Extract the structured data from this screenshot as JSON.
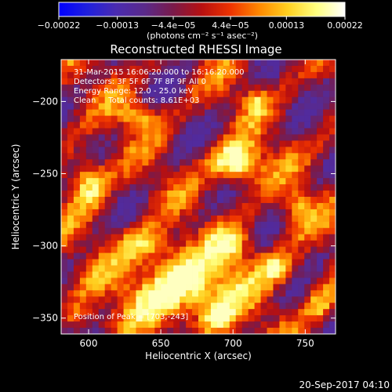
{
  "chart_data": {
    "type": "heatmap",
    "title": "Reconstructed RHESSI Image",
    "xlabel": "Heliocentric X (arcsec)",
    "ylabel": "Heliocentric Y (arcsec)",
    "xlim": [
      581,
      771
    ],
    "ylim": [
      -361,
      -171
    ],
    "x_ticks": [
      600,
      650,
      700,
      750
    ],
    "y_ticks": [
      -200,
      -250,
      -300,
      -350
    ],
    "x_tick_labels": [
      "600",
      "650",
      "700",
      "750"
    ],
    "y_tick_labels": [
      "−200",
      "−250",
      "−300",
      "−350"
    ],
    "colorbar": {
      "ticks": [
        -0.00022,
        -0.00013,
        -4.4e-05,
        4.4e-05,
        0.00013,
        0.00022
      ],
      "tick_labels": [
        "−0.00022",
        "−0.00013",
        "−4.4e−05",
        "4.4e−05",
        "0.00013",
        "0.00022"
      ],
      "unit_label": "(photons cm⁻² s⁻¹ asec⁻²)",
      "colormap": [
        "#0000ff",
        "#2020dd",
        "#4a2bb0",
        "#5a2a8a",
        "#7a1a4a",
        "#b81010",
        "#ee3300",
        "#ff8800",
        "#ffd020",
        "#ffff80",
        "#ffffff"
      ]
    },
    "annotations": [
      "31-Mar-2015 16:06:20.000 to 16:16:20.000",
      "Detectors: 3F 5F 6F 7F 8F 9F All 0",
      "Energy Range: 12.0 - 25.0 keV",
      "Clean     Total counts: 8.61E+03"
    ],
    "peak_label": "Position of Peak = [703,-243]",
    "peak": [
      703,
      -243
    ],
    "sources": [
      {
        "x": 703,
        "y": -243,
        "amp": 1.0,
        "sx": 12,
        "sy": 10
      },
      {
        "x": 665,
        "y": -330,
        "amp": 0.95,
        "sx": 26,
        "sy": 16
      },
      {
        "x": 600,
        "y": -255,
        "amp": 0.75,
        "sx": 9,
        "sy": 12
      },
      {
        "x": 640,
        "y": -300,
        "amp": 0.6,
        "sx": 14,
        "sy": 9
      },
      {
        "x": 730,
        "y": -315,
        "amp": 0.55,
        "sx": 10,
        "sy": 9
      },
      {
        "x": 745,
        "y": -275,
        "amp": 0.5,
        "sx": 8,
        "sy": 10
      },
      {
        "x": 635,
        "y": -210,
        "amp": 0.6,
        "sx": 9,
        "sy": 7
      },
      {
        "x": 715,
        "y": -200,
        "amp": 0.45,
        "sx": 6,
        "sy": 6
      },
      {
        "x": 760,
        "y": -340,
        "amp": 0.5,
        "sx": 7,
        "sy": 10
      },
      {
        "x": 595,
        "y": -350,
        "amp": 0.35,
        "sx": 8,
        "sy": 8
      },
      {
        "x": 700,
        "y": -300,
        "amp": 0.55,
        "sx": 10,
        "sy": 9
      },
      {
        "x": 690,
        "y": -350,
        "amp": 0.5,
        "sx": 8,
        "sy": 7
      }
    ]
  },
  "timestamp": "20-Sep-2017 04:10"
}
